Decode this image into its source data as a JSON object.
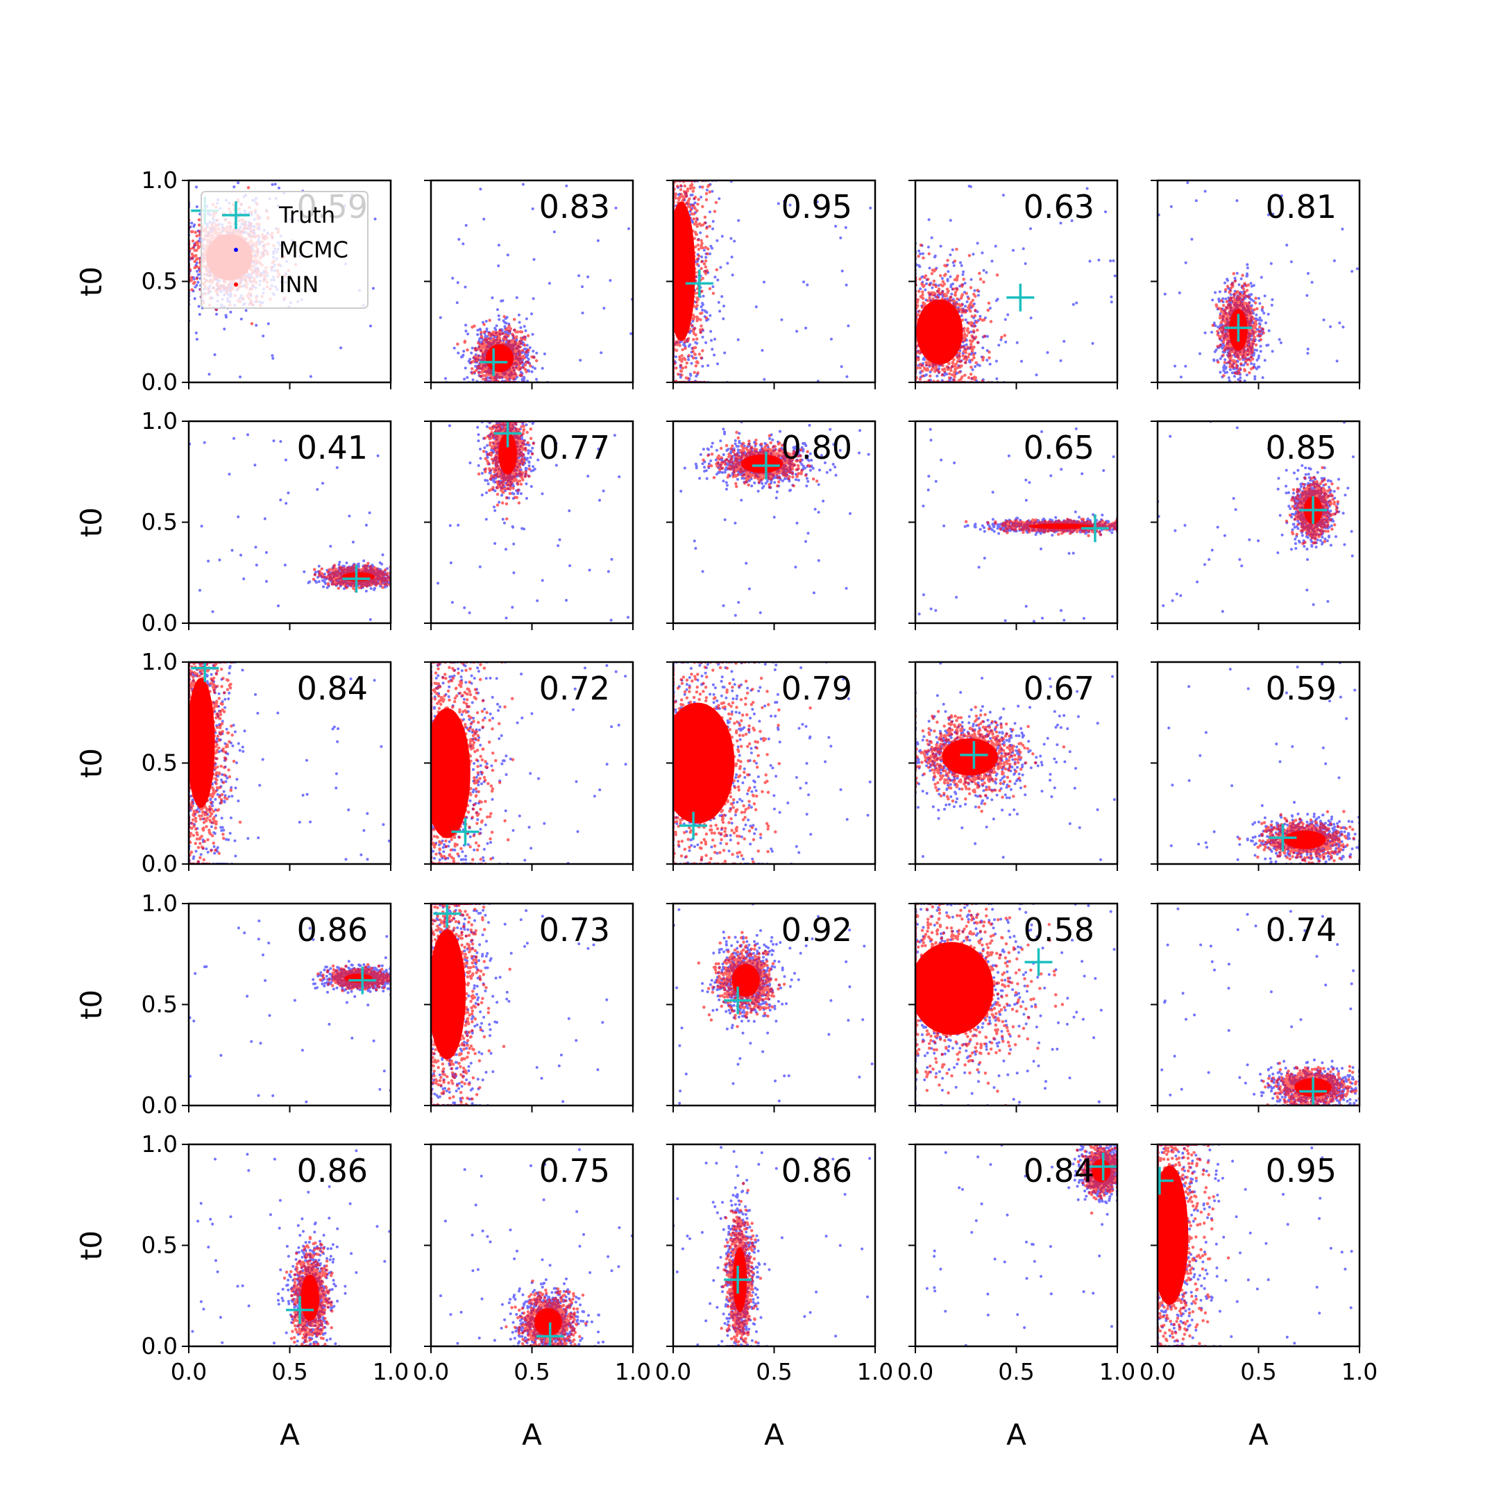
{
  "chart_data": {
    "type": "scatter",
    "layout": "5x5 grid of subplots",
    "xlabel": "A",
    "ylabel": "t0",
    "xlim": [
      0.0,
      1.0
    ],
    "ylim": [
      0.0,
      1.0
    ],
    "x_ticks": [
      "0.0",
      "0.5",
      "1.0"
    ],
    "y_ticks": [
      "0.0",
      "0.5",
      "1.0"
    ],
    "legend": {
      "placement": "top-left of first subplot",
      "entries": [
        {
          "label": "Truth",
          "marker": "plus",
          "color": "#1cbfbf"
        },
        {
          "label": "MCMC",
          "marker": "dot",
          "color": "#0000ff"
        },
        {
          "label": "INN",
          "marker": "dot",
          "color": "#ff0000"
        }
      ]
    },
    "colors": {
      "truth": "#1cbfbf",
      "mcmc": "#0000ff",
      "inn": "#ff0000"
    },
    "subplots": [
      {
        "value": "0.59",
        "truth": [
          0.08,
          0.85
        ],
        "cloud": {
          "cx": 0.2,
          "cy": 0.62,
          "sx": 0.1,
          "sy": 0.1
        }
      },
      {
        "value": "0.83",
        "truth": [
          0.31,
          0.1
        ],
        "cloud": {
          "cx": 0.34,
          "cy": 0.12,
          "sx": 0.06,
          "sy": 0.06
        }
      },
      {
        "value": "0.95",
        "truth": [
          0.13,
          0.49
        ],
        "cloud": {
          "cx": 0.04,
          "cy": 0.55,
          "sx": 0.06,
          "sy": 0.3
        }
      },
      {
        "value": "0.63",
        "truth": [
          0.52,
          0.42
        ],
        "cloud": {
          "cx": 0.12,
          "cy": 0.25,
          "sx": 0.1,
          "sy": 0.14
        }
      },
      {
        "value": "0.81",
        "truth": [
          0.4,
          0.27
        ],
        "cloud": {
          "cx": 0.4,
          "cy": 0.26,
          "sx": 0.04,
          "sy": 0.09
        }
      },
      {
        "value": "0.41",
        "truth": [
          0.83,
          0.22
        ],
        "cloud": {
          "cx": 0.84,
          "cy": 0.23,
          "sx": 0.07,
          "sy": 0.02
        }
      },
      {
        "value": "0.77",
        "truth": [
          0.38,
          0.94
        ],
        "cloud": {
          "cx": 0.38,
          "cy": 0.84,
          "sx": 0.04,
          "sy": 0.09
        }
      },
      {
        "value": "0.80",
        "truth": [
          0.46,
          0.78
        ],
        "cloud": {
          "cx": 0.44,
          "cy": 0.79,
          "sx": 0.09,
          "sy": 0.04
        }
      },
      {
        "value": "0.65",
        "truth": [
          0.89,
          0.47
        ],
        "cloud": {
          "cx": 0.72,
          "cy": 0.48,
          "sx": 0.14,
          "sy": 0.012
        }
      },
      {
        "value": "0.85",
        "truth": [
          0.77,
          0.56
        ],
        "cloud": {
          "cx": 0.77,
          "cy": 0.56,
          "sx": 0.04,
          "sy": 0.06
        }
      },
      {
        "value": "0.84",
        "truth": [
          0.08,
          0.97
        ],
        "cloud": {
          "cx": 0.06,
          "cy": 0.6,
          "sx": 0.06,
          "sy": 0.28
        }
      },
      {
        "value": "0.72",
        "truth": [
          0.17,
          0.16
        ],
        "cloud": {
          "cx": 0.08,
          "cy": 0.45,
          "sx": 0.1,
          "sy": 0.28
        }
      },
      {
        "value": "0.79",
        "truth": [
          0.1,
          0.19
        ],
        "cloud": {
          "cx": 0.12,
          "cy": 0.5,
          "sx": 0.16,
          "sy": 0.26
        }
      },
      {
        "value": "0.67",
        "truth": [
          0.29,
          0.54
        ],
        "cloud": {
          "cx": 0.27,
          "cy": 0.53,
          "sx": 0.12,
          "sy": 0.08
        }
      },
      {
        "value": "0.59",
        "truth": [
          0.62,
          0.13
        ],
        "cloud": {
          "cx": 0.73,
          "cy": 0.12,
          "sx": 0.09,
          "sy": 0.04
        }
      },
      {
        "value": "0.86",
        "truth": [
          0.86,
          0.62
        ],
        "cloud": {
          "cx": 0.84,
          "cy": 0.63,
          "sx": 0.06,
          "sy": 0.02
        }
      },
      {
        "value": "0.73",
        "truth": [
          0.08,
          0.95
        ],
        "cloud": {
          "cx": 0.08,
          "cy": 0.55,
          "sx": 0.08,
          "sy": 0.28
        }
      },
      {
        "value": "0.92",
        "truth": [
          0.32,
          0.52
        ],
        "cloud": {
          "cx": 0.36,
          "cy": 0.62,
          "sx": 0.06,
          "sy": 0.07
        }
      },
      {
        "value": "0.58",
        "truth": [
          0.61,
          0.71
        ],
        "cloud": {
          "cx": 0.18,
          "cy": 0.58,
          "sx": 0.18,
          "sy": 0.2
        }
      },
      {
        "value": "0.74",
        "truth": [
          0.77,
          0.07
        ],
        "cloud": {
          "cx": 0.77,
          "cy": 0.09,
          "sx": 0.08,
          "sy": 0.04
        }
      },
      {
        "value": "0.86",
        "truth": [
          0.55,
          0.18
        ],
        "cloud": {
          "cx": 0.6,
          "cy": 0.24,
          "sx": 0.04,
          "sy": 0.1
        }
      },
      {
        "value": "0.75",
        "truth": [
          0.59,
          0.05
        ],
        "cloud": {
          "cx": 0.58,
          "cy": 0.12,
          "sx": 0.06,
          "sy": 0.06
        }
      },
      {
        "value": "0.86",
        "truth": [
          0.32,
          0.33
        ],
        "cloud": {
          "cx": 0.33,
          "cy": 0.33,
          "sx": 0.03,
          "sy": 0.14
        }
      },
      {
        "value": "0.84",
        "truth": [
          0.93,
          0.89
        ],
        "cloud": {
          "cx": 0.92,
          "cy": 0.87,
          "sx": 0.04,
          "sy": 0.05
        }
      },
      {
        "value": "0.95",
        "truth": [
          0.01,
          0.82
        ],
        "cloud": {
          "cx": 0.06,
          "cy": 0.55,
          "sx": 0.08,
          "sy": 0.3
        }
      }
    ]
  }
}
